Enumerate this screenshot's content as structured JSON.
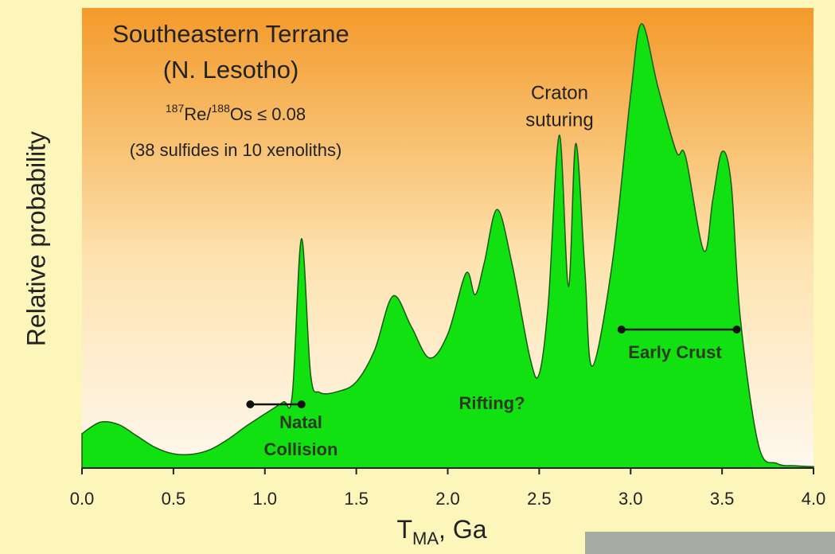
{
  "chart_data": {
    "type": "area",
    "title": [
      "Southeastern Terrane",
      "(N. Lesotho)"
    ],
    "subtitle_parts": [
      "187",
      "Re/",
      "188",
      "Os ≤ 0.08"
    ],
    "subtitle2": "(38 sulfides in 10 xenoliths)",
    "y_label": "Relative probability",
    "x_label_parts": [
      "T",
      "MA",
      ", Ga"
    ],
    "color": "#11e011",
    "x": [
      0.0,
      0.1,
      0.2,
      0.3,
      0.4,
      0.5,
      0.6,
      0.7,
      0.8,
      0.9,
      1.0,
      1.1,
      1.15,
      1.2,
      1.25,
      1.3,
      1.4,
      1.5,
      1.6,
      1.7,
      1.8,
      1.9,
      2.0,
      2.1,
      2.15,
      2.2,
      2.27,
      2.35,
      2.45,
      2.5,
      2.55,
      2.61,
      2.66,
      2.7,
      2.75,
      2.79,
      2.9,
      3.0,
      3.06,
      3.15,
      3.25,
      3.3,
      3.4,
      3.45,
      3.5,
      3.55,
      3.6,
      3.7,
      3.8,
      3.9,
      4.0
    ],
    "values": [
      7.5,
      10,
      9.5,
      7,
      4.5,
      3.1,
      3,
      4,
      6.3,
      9.2,
      11.8,
      14.4,
      16,
      50,
      20.5,
      16.5,
      16.7,
      18.8,
      25.7,
      37.5,
      30.9,
      24,
      29.2,
      42.5,
      37.8,
      44.8,
      56.4,
      44.8,
      24,
      20.5,
      36,
      72.6,
      39.6,
      70.8,
      43,
      22.2,
      44.8,
      81.3,
      96.9,
      83,
      69,
      68,
      47.4,
      58.7,
      69,
      62,
      32.6,
      4.9,
      1,
      0.5,
      0.3
    ],
    "xlim": [
      0,
      4
    ],
    "ylim": [
      0,
      100
    ],
    "xticks": [
      {
        "value": 0,
        "label": "0.0"
      },
      0.5,
      {
        "value": 1,
        "label": "1.0"
      },
      1.5,
      {
        "value": 2,
        "label": "2.0"
      },
      2.5,
      {
        "value": 3,
        "label": "3.0"
      },
      3.5,
      {
        "value": 4,
        "label": "4.0"
      }
    ],
    "annotations": {
      "craton": [
        "Craton",
        "suturing"
      ],
      "natal": [
        "Natal",
        "Collision"
      ],
      "natal_range": [
        0.92,
        1.2
      ],
      "rifting": "Rifting?",
      "early_crust": "Early Crust",
      "early_crust_range": [
        2.95,
        3.58
      ]
    }
  }
}
